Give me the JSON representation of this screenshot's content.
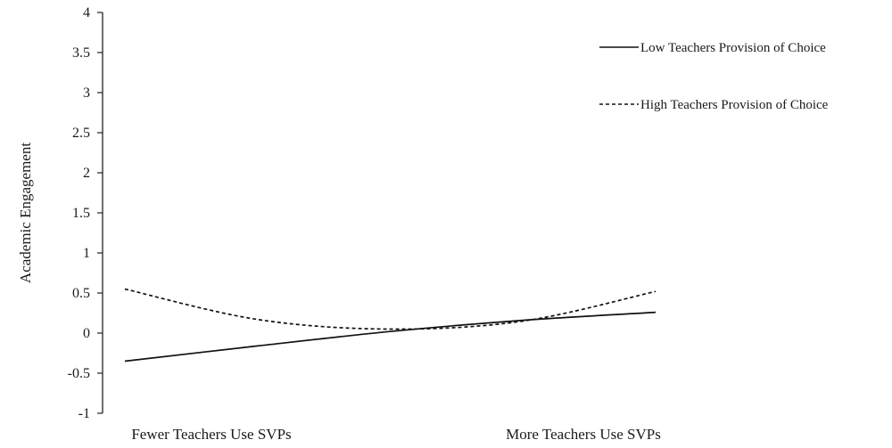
{
  "chart_data": {
    "type": "line",
    "title": "",
    "xlabel": "",
    "ylabel": "Academic Engagement",
    "ylim": [
      -1,
      4
    ],
    "yticks": [
      "4",
      "3.5",
      "3",
      "2.5",
      "2",
      "1.5",
      "1",
      "0.5",
      "0",
      "-0.5",
      "-1"
    ],
    "ytick_values": [
      4,
      3.5,
      3,
      2.5,
      2,
      1.5,
      1,
      0.5,
      0,
      -0.5,
      -1
    ],
    "categories": [
      "Fewer Teachers Use SVPs",
      "More Teachers Use SVPs"
    ],
    "x": [
      0,
      0.5,
      1
    ],
    "grid": false,
    "legend_position": "top-right",
    "series": [
      {
        "name": "Low Teachers Provision of Choice",
        "style": "solid",
        "color": "#111111",
        "x": [
          0,
          0.25,
          0.5,
          0.75,
          1
        ],
        "values": [
          -0.35,
          -0.16,
          0.02,
          0.16,
          0.26
        ]
      },
      {
        "name": "High Teachers Provision of Choice",
        "style": "dashed",
        "color": "#111111",
        "x": [
          0,
          0.25,
          0.5,
          0.75,
          1
        ],
        "values": [
          0.55,
          0.17,
          0.05,
          0.15,
          0.52
        ]
      }
    ]
  }
}
